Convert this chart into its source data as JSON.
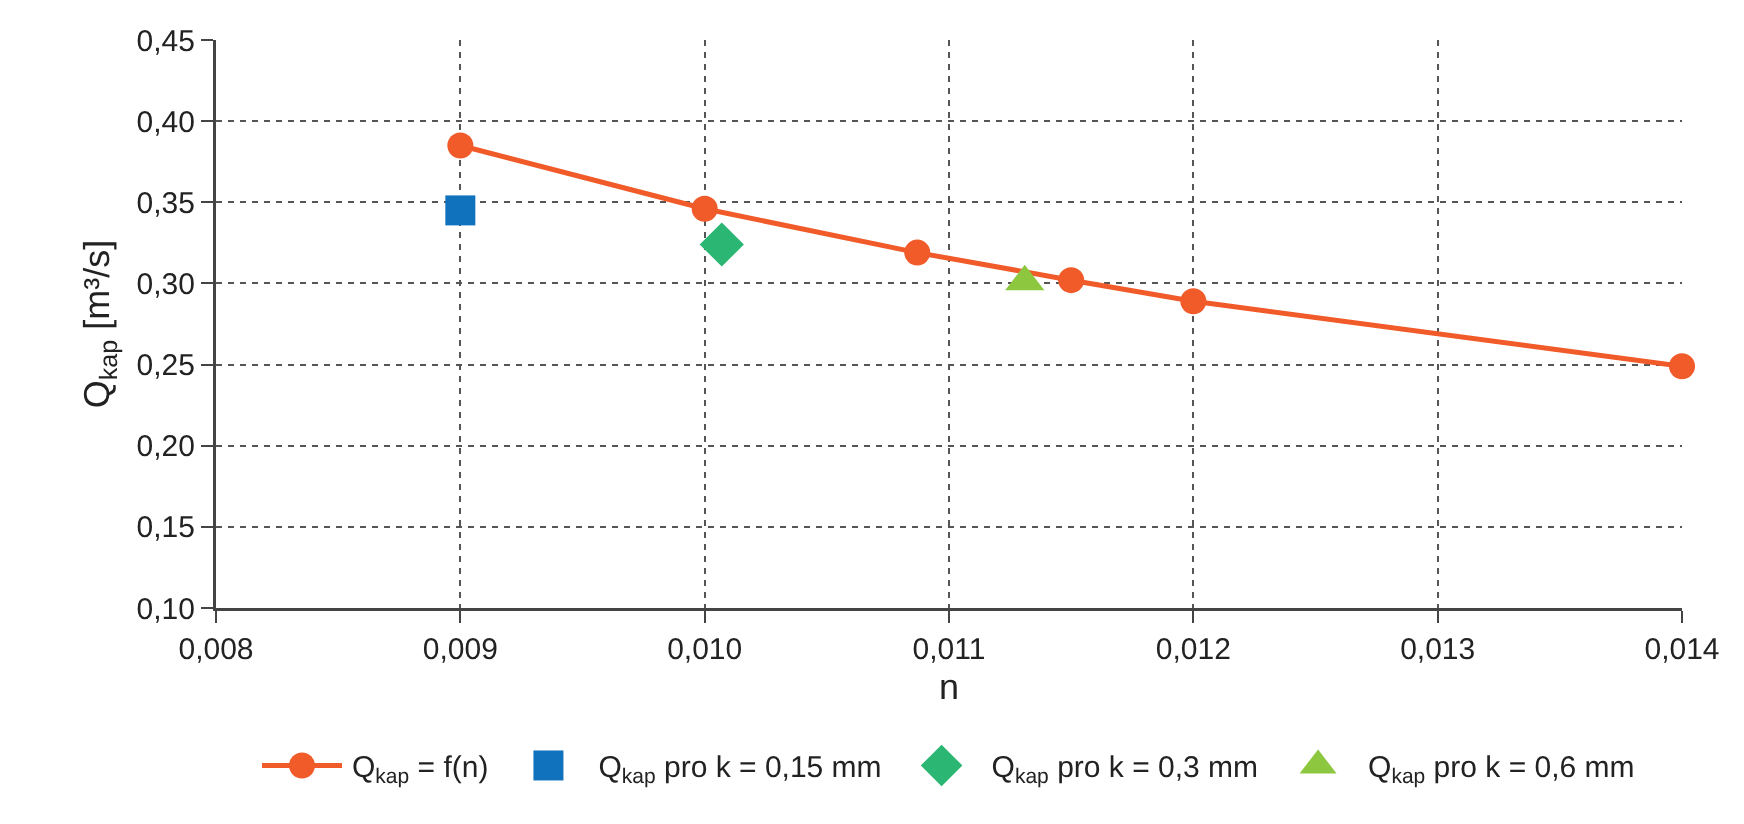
{
  "chart_data": {
    "type": "line",
    "xlabel": "n",
    "ylabel": "Q$_{kap}$ [m³/s]",
    "xlim": [
      0.008,
      0.014
    ],
    "xticks": [
      {
        "value": 0.008,
        "label": "0,008"
      },
      {
        "value": 0.009,
        "label": "0,009"
      },
      {
        "value": 0.01,
        "label": "0,010"
      },
      {
        "value": 0.011,
        "label": "0,011"
      },
      {
        "value": 0.012,
        "label": "0,012"
      },
      {
        "value": 0.013,
        "label": "0,013"
      },
      {
        "value": 0.014,
        "label": "0,014"
      }
    ],
    "ylim": [
      0.1,
      0.45
    ],
    "yticks": [
      {
        "value": 0.1,
        "label": "0,10"
      },
      {
        "value": 0.15,
        "label": "0,15"
      },
      {
        "value": 0.2,
        "label": "0,20"
      },
      {
        "value": 0.25,
        "label": "0,25"
      },
      {
        "value": 0.3,
        "label": "0,30"
      },
      {
        "value": 0.35,
        "label": "0,35"
      },
      {
        "value": 0.4,
        "label": "0,40"
      },
      {
        "value": 0.45,
        "label": "0,45"
      }
    ],
    "grid": true,
    "legend": "bottom",
    "series": [
      {
        "name": "Q$_{kap}$ = f(n)",
        "marker": "circle",
        "color": "#f15a29",
        "x": [
          0.009,
          0.01,
          0.01087,
          0.0115,
          0.012,
          0.014
        ],
        "values": [
          0.385,
          0.346,
          0.319,
          0.302,
          0.289,
          0.249
        ]
      },
      {
        "name": "Q$_{kap}$ pro k = 0,15 mm",
        "type": "scatter",
        "marker": "square",
        "color": "#1072bd",
        "x": [
          0.009
        ],
        "values": [
          0.345
        ]
      },
      {
        "name": "Q$_{kap}$ pro k = 0,3 mm",
        "type": "scatter",
        "marker": "diamond",
        "color": "#2bb673",
        "x": [
          0.01007
        ],
        "values": [
          0.324
        ]
      },
      {
        "name": "Q$_{kap}$ pro k = 0,6 mm",
        "type": "scatter",
        "marker": "triangle",
        "color": "#8dc63f",
        "x": [
          0.01131
        ],
        "values": [
          0.301
        ]
      }
    ]
  }
}
